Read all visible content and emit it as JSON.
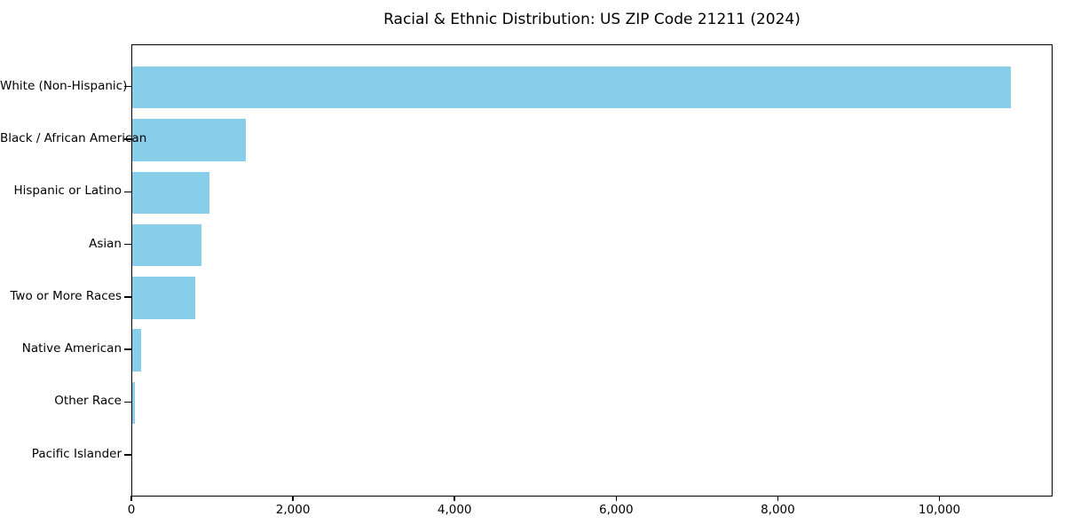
{
  "chart_data": {
    "type": "bar",
    "orientation": "horizontal",
    "title": "Racial & Ethnic Distribution: US ZIP Code 21211 (2024)",
    "categories": [
      "White (Non-Hispanic)",
      "Black / African American",
      "Hispanic or Latino",
      "Asian",
      "Two or More Races",
      "Native American",
      "Other Race",
      "Pacific Islander"
    ],
    "values": [
      10870,
      1405,
      950,
      855,
      780,
      105,
      35,
      0
    ],
    "xlabel": "",
    "ylabel": "",
    "x_ticks": [
      0,
      2000,
      4000,
      6000,
      8000,
      10000
    ],
    "x_tick_labels": [
      "0",
      "2,000",
      "4,000",
      "6,000",
      "8,000",
      "10,000"
    ],
    "xlim": [
      0,
      11400
    ],
    "grid": false,
    "legend": false,
    "bar_color": "#87CEEB",
    "axis_color": "#000000",
    "text_color": "#000000",
    "background_color": "#ffffff"
  }
}
